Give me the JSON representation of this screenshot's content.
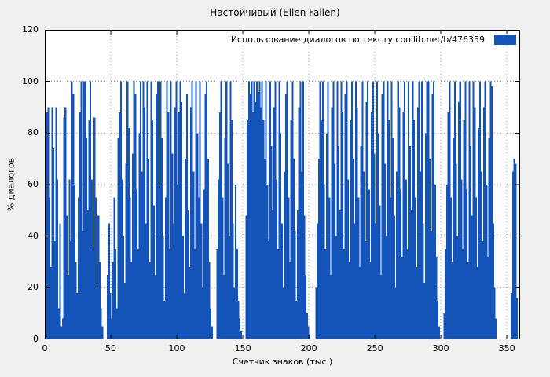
{
  "colors": {
    "bar": "#1453b8",
    "background": "#f0f0f0",
    "plot_background": "#ffffff",
    "grid": "#9a9a9a",
    "frame": "#000000"
  },
  "chart_data": {
    "type": "bar",
    "title": "Настойчивый (Ellen Fallen)",
    "series_name": "Использование диалогов по тексту  coollib.net/b/476359",
    "xlabel": "Счетчик знаков (тыс.)",
    "ylabel": "% диалогов",
    "xlim": [
      0,
      360
    ],
    "ylim": [
      0,
      120
    ],
    "xticks": [
      0,
      50,
      100,
      150,
      200,
      250,
      300,
      350
    ],
    "yticks": [
      0,
      20,
      40,
      60,
      80,
      100,
      120
    ],
    "grid": true,
    "legend_position": "top-right",
    "x_start": 0,
    "x_step": 1,
    "values": [
      0,
      88,
      90,
      55,
      28,
      90,
      74,
      38,
      90,
      62,
      12,
      45,
      5,
      8,
      86,
      90,
      48,
      25,
      62,
      38,
      100,
      95,
      60,
      30,
      18,
      55,
      88,
      100,
      42,
      100,
      100,
      78,
      50,
      85,
      100,
      62,
      35,
      86,
      55,
      20,
      48,
      30,
      12,
      5,
      0,
      0,
      0,
      25,
      45,
      18,
      8,
      30,
      55,
      35,
      12,
      78,
      88,
      100,
      62,
      40,
      22,
      68,
      100,
      82,
      55,
      30,
      72,
      100,
      95,
      58,
      35,
      80,
      100,
      65,
      100,
      90,
      45,
      100,
      70,
      30,
      100,
      85,
      52,
      25,
      95,
      100,
      60,
      100,
      78,
      40,
      15,
      55,
      100,
      88,
      35,
      100,
      72,
      45,
      90,
      100,
      60,
      88,
      100,
      92,
      40,
      18,
      70,
      95,
      50,
      28,
      90,
      100,
      65,
      35,
      100,
      80,
      55,
      100,
      45,
      20,
      58,
      95,
      100,
      70,
      30,
      12,
      5,
      0,
      0,
      0,
      35,
      62,
      88,
      100,
      55,
      25,
      78,
      100,
      68,
      40,
      100,
      85,
      45,
      20,
      60,
      35,
      15,
      8,
      3,
      0,
      0,
      0,
      48,
      85,
      100,
      95,
      100,
      88,
      100,
      92,
      100,
      96,
      100,
      90,
      100,
      85,
      70,
      100,
      60,
      38,
      100,
      75,
      50,
      90,
      100,
      62,
      35,
      100,
      80,
      45,
      20,
      65,
      95,
      100,
      55,
      30,
      85,
      100,
      70,
      42,
      15,
      50,
      90,
      100,
      65,
      100,
      48,
      25,
      10,
      5,
      2,
      0,
      0,
      0,
      0,
      20,
      45,
      70,
      100,
      85,
      100,
      60,
      35,
      80,
      100,
      55,
      25,
      90,
      100,
      68,
      40,
      100,
      75,
      50,
      100,
      88,
      35,
      95,
      100,
      62,
      30,
      85,
      100,
      70,
      45,
      100,
      90,
      55,
      28,
      75,
      100,
      65,
      38,
      92,
      100,
      58,
      30,
      88,
      100,
      72,
      45,
      100,
      80,
      52,
      25,
      95,
      100,
      68,
      40,
      100,
      85,
      55,
      100,
      78,
      48,
      20,
      65,
      100,
      90,
      58,
      32,
      88,
      100,
      62,
      35,
      100,
      75,
      50,
      100,
      85,
      55,
      28,
      90,
      100,
      65,
      100,
      45,
      22,
      80,
      100,
      100,
      70,
      42,
      95,
      100,
      60,
      32,
      15,
      5,
      0,
      0,
      0,
      10,
      35,
      60,
      88,
      100,
      55,
      30,
      78,
      100,
      68,
      40,
      92,
      100,
      62,
      35,
      85,
      100,
      58,
      30,
      100,
      75,
      48,
      100,
      90,
      55,
      28,
      82,
      100,
      65,
      38,
      90,
      100,
      60,
      32,
      78,
      100,
      98,
      45,
      20,
      8,
      0,
      0,
      0,
      0,
      0,
      0,
      0,
      0,
      0,
      0,
      0,
      18,
      65,
      70,
      68,
      16,
      0,
      0
    ]
  }
}
